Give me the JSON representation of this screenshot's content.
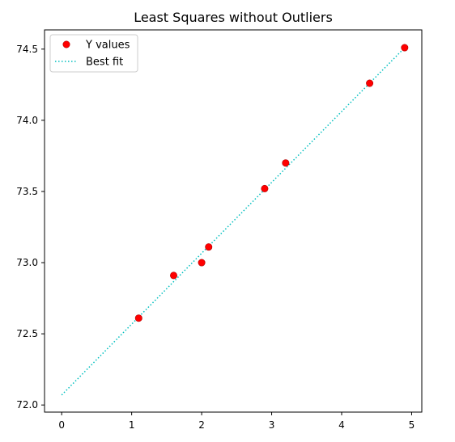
{
  "chart_data": {
    "type": "scatter",
    "title": "Least Squares without Outliers",
    "xlabel": "",
    "ylabel": "",
    "xlim": [
      -0.245,
      5.145
    ],
    "ylim": [
      71.95,
      74.635
    ],
    "x_ticks": [
      0,
      1,
      2,
      3,
      4,
      5
    ],
    "x_tick_labels": [
      "0",
      "1",
      "2",
      "3",
      "4",
      "5"
    ],
    "y_ticks": [
      72.0,
      72.5,
      73.0,
      73.5,
      74.0,
      74.5
    ],
    "y_tick_labels": [
      "72.0",
      "72.5",
      "73.0",
      "73.5",
      "74.0",
      "74.5"
    ],
    "grid": false,
    "legend_position": "upper left",
    "series": [
      {
        "name": "Y values",
        "kind": "scatter",
        "marker": "circle",
        "color": "#ff0000",
        "x": [
          1.1,
          1.6,
          2.0,
          2.1,
          2.9,
          3.2,
          4.4,
          4.9
        ],
        "y": [
          72.61,
          72.91,
          73.0,
          73.11,
          73.52,
          73.7,
          74.26,
          74.51
        ]
      },
      {
        "name": "Best fit",
        "kind": "line",
        "style": "dotted",
        "color": "#00bfbf",
        "x": [
          0,
          4.9
        ],
        "y": [
          72.07,
          74.51
        ]
      }
    ]
  }
}
